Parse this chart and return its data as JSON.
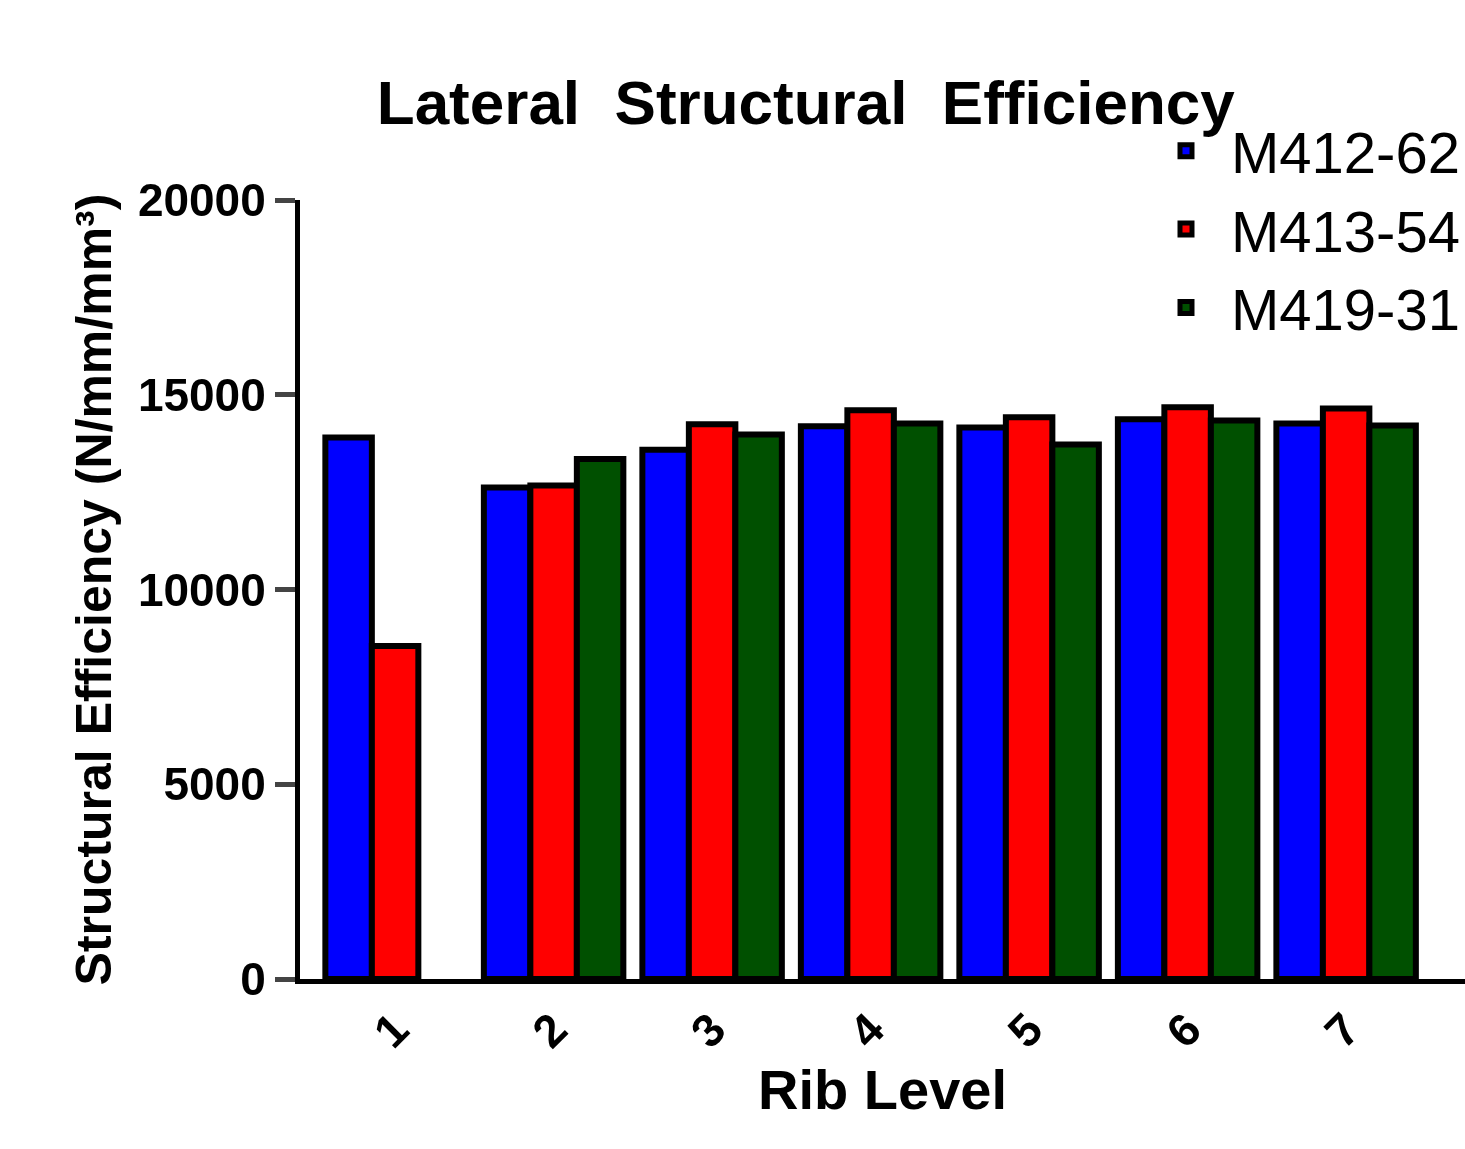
{
  "chart_data": {
    "type": "bar",
    "title": "Lateral  Structural  Efficiency",
    "xlabel": "Rib Level",
    "ylabel": "Structural Efficiency (N/mm/mm³)",
    "categories": [
      "1",
      "2",
      "3",
      "4",
      "5",
      "6",
      "7"
    ],
    "series": [
      {
        "name": "M412-62",
        "color": "#0000ff",
        "values": [
          13900,
          12620,
          13590,
          14190,
          14160,
          14370,
          14260
        ]
      },
      {
        "name": "M413-54",
        "color": "#ff0000",
        "values": [
          8550,
          12670,
          14240,
          14600,
          14420,
          14680,
          14650
        ]
      },
      {
        "name": "M419-31",
        "color": "#005000",
        "values": [
          null,
          13350,
          13980,
          14260,
          13720,
          14340,
          14210
        ]
      }
    ],
    "ylim": [
      0,
      20000
    ],
    "yticks": [
      0,
      5000,
      10000,
      15000,
      20000
    ],
    "grid": false,
    "legend": "top right"
  }
}
